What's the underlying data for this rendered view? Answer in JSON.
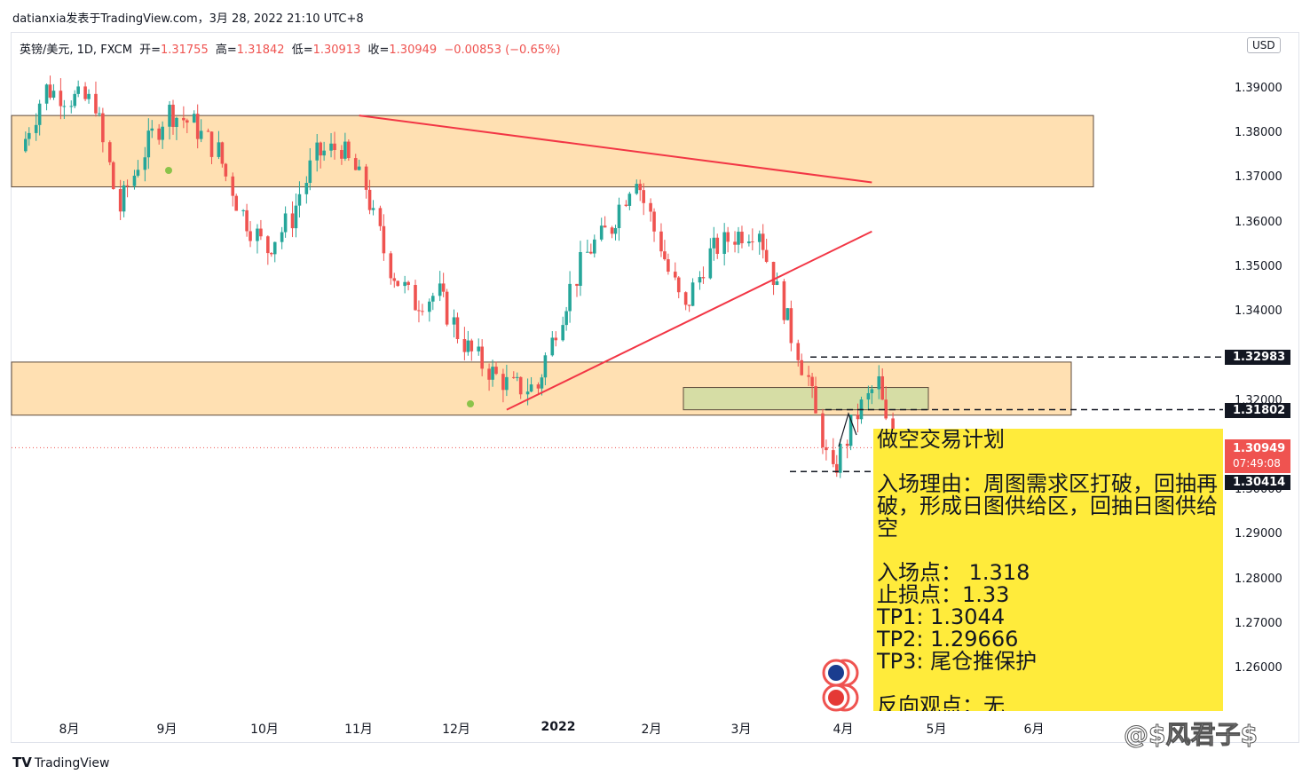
{
  "header": "datianxia发表于TradingView.com，3月 28, 2022 21:10 UTC+8",
  "legend": {
    "symbol": "英镑/美元, 1D, FXCM",
    "open_label": "开=",
    "open": "1.31755",
    "high_label": "高=",
    "high": "1.31842",
    "low_label": "低=",
    "low": "1.30913",
    "close_label": "收=",
    "close": "1.30949",
    "change": "−0.00853 (−0.65%)"
  },
  "currency": "USD",
  "price_tags": {
    "upper": "1.32983",
    "entry": "1.31802",
    "current": "1.30949",
    "countdown": "07:49:08",
    "lower": "1.30414"
  },
  "note": {
    "title": "做空交易计划",
    "reason": "入场理由：周图需求区打破，回抽再破，形成日图供给区，回抽日图供给空",
    "entry": "入场点：  1.318",
    "stop": "止损点：1.33",
    "tp1": "TP1: 1.3044",
    "tp2": "TP2:  1.29666",
    "tp3": "TP3:  尾仓推保护",
    "reverse": "反向观点：无"
  },
  "brand": "TradingView",
  "watermark": "@$风君子$",
  "colors": {
    "up": "#26a69a",
    "down": "#ef5350",
    "zone_fill": "#ffe0b2",
    "zone_stroke": "#5d4a3b",
    "note_bg": "#ffeb3b",
    "trend": "#f23645"
  },
  "chart_data": {
    "type": "candlestick",
    "title": "英镑/美元, 1D, FXCM",
    "y_range": [
      1.25,
      1.4
    ],
    "y_ticks": [
      "1.39000",
      "1.38000",
      "1.37000",
      "1.36000",
      "1.35000",
      "1.34000",
      "1.32000",
      "1.30000",
      "1.29000",
      "1.28000",
      "1.27000",
      "1.26000"
    ],
    "x_ticks": [
      "8月",
      "9月",
      "10月",
      "11月",
      "12月",
      "2022",
      "2月",
      "3月",
      "4月",
      "5月",
      "6月"
    ],
    "price_series": [
      {
        "date": "2021-07-23",
        "close": 1.376
      },
      {
        "date": "2021-07-30",
        "close": 1.39
      },
      {
        "date": "2021-08-06",
        "close": 1.388
      },
      {
        "date": "2021-08-13",
        "close": 1.387
      },
      {
        "date": "2021-08-20",
        "close": 1.363
      },
      {
        "date": "2021-08-27",
        "close": 1.376
      },
      {
        "date": "2021-09-03",
        "close": 1.385
      },
      {
        "date": "2021-09-10",
        "close": 1.382
      },
      {
        "date": "2021-09-17",
        "close": 1.376
      },
      {
        "date": "2021-09-24",
        "close": 1.362
      },
      {
        "date": "2021-10-01",
        "close": 1.354
      },
      {
        "date": "2021-10-08",
        "close": 1.361
      },
      {
        "date": "2021-10-15",
        "close": 1.375
      },
      {
        "date": "2021-10-22",
        "close": 1.377
      },
      {
        "date": "2021-10-29",
        "close": 1.368
      },
      {
        "date": "2021-11-05",
        "close": 1.35
      },
      {
        "date": "2021-11-12",
        "close": 1.342
      },
      {
        "date": "2021-11-19",
        "close": 1.344
      },
      {
        "date": "2021-11-26",
        "close": 1.333
      },
      {
        "date": "2021-12-03",
        "close": 1.327
      },
      {
        "date": "2021-12-10",
        "close": 1.323
      },
      {
        "date": "2021-12-17",
        "close": 1.323
      },
      {
        "date": "2021-12-24",
        "close": 1.34
      },
      {
        "date": "2021-12-31",
        "close": 1.353
      },
      {
        "date": "2022-01-07",
        "close": 1.359
      },
      {
        "date": "2022-01-14",
        "close": 1.371
      },
      {
        "date": "2022-01-21",
        "close": 1.355
      },
      {
        "date": "2022-01-28",
        "close": 1.34
      },
      {
        "date": "2022-02-04",
        "close": 1.353
      },
      {
        "date": "2022-02-11",
        "close": 1.357
      },
      {
        "date": "2022-02-18",
        "close": 1.359
      },
      {
        "date": "2022-02-25",
        "close": 1.341
      },
      {
        "date": "2022-03-04",
        "close": 1.325
      },
      {
        "date": "2022-03-11",
        "close": 1.303
      },
      {
        "date": "2022-03-18",
        "close": 1.317
      },
      {
        "date": "2022-03-24",
        "close": 1.324
      },
      {
        "date": "2022-03-28",
        "close": 1.3095
      }
    ],
    "zones": [
      {
        "name": "upper supply zone",
        "from": 1.368,
        "to": 1.384
      },
      {
        "name": "demand zone",
        "from": 1.3168,
        "to": 1.3287
      },
      {
        "name": "daily supply zone",
        "from": 1.318,
        "to": 1.323
      }
    ],
    "levels": [
      1.32983,
      1.31802,
      1.30949,
      1.30414
    ],
    "trendlines": [
      {
        "from": [
          "2021-10-27",
          1.384
        ],
        "to": [
          "2022-03-22",
          1.369
        ]
      },
      {
        "from": [
          "2021-12-08",
          1.318
        ],
        "to": [
          "2022-03-22",
          1.358
        ]
      }
    ]
  }
}
